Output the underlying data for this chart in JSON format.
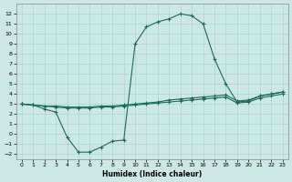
{
  "xlabel": "Humidex (Indice chaleur)",
  "bg_color": "#cce8e4",
  "grid_color": "#aad4d0",
  "line_color": "#1a6b5e",
  "marker": "+",
  "xlim": [
    -0.5,
    23.5
  ],
  "ylim": [
    -2.5,
    13.0
  ],
  "xticks": [
    0,
    1,
    2,
    3,
    4,
    5,
    6,
    7,
    8,
    9,
    10,
    11,
    12,
    13,
    14,
    15,
    16,
    17,
    18,
    19,
    20,
    21,
    22,
    23
  ],
  "yticks": [
    -2,
    -1,
    0,
    1,
    2,
    3,
    4,
    5,
    6,
    7,
    8,
    9,
    10,
    11,
    12
  ],
  "line1_x": [
    0,
    1,
    2,
    3,
    4,
    5,
    6,
    7,
    8,
    9,
    10,
    11,
    12,
    13,
    14,
    15,
    16,
    17,
    18,
    19,
    20,
    21,
    22,
    23
  ],
  "line1_y": [
    3.0,
    2.9,
    2.8,
    2.8,
    2.7,
    2.7,
    2.7,
    2.8,
    2.8,
    2.9,
    3.0,
    3.1,
    3.2,
    3.4,
    3.5,
    3.6,
    3.7,
    3.8,
    3.9,
    3.3,
    3.4,
    3.8,
    4.0,
    4.2
  ],
  "line2_x": [
    0,
    1,
    2,
    3,
    4,
    5,
    6,
    7,
    8,
    9,
    10,
    11,
    12,
    13,
    14,
    15,
    16,
    17,
    18,
    19,
    20,
    21,
    22,
    23
  ],
  "line2_y": [
    3.0,
    2.9,
    2.8,
    2.7,
    2.6,
    2.6,
    2.6,
    2.7,
    2.7,
    2.8,
    2.9,
    3.0,
    3.1,
    3.2,
    3.3,
    3.4,
    3.5,
    3.6,
    3.7,
    3.1,
    3.2,
    3.6,
    3.8,
    4.0
  ],
  "line3_x": [
    0,
    1,
    2,
    3,
    4,
    5,
    6,
    7,
    8,
    9,
    10,
    11,
    12,
    13,
    14,
    15,
    16,
    17,
    18,
    19,
    20,
    21,
    22,
    23
  ],
  "line3_y": [
    3.0,
    2.9,
    2.5,
    2.2,
    -0.3,
    -1.8,
    -1.8,
    -1.3,
    -0.7,
    -0.6,
    9.0,
    10.7,
    11.2,
    11.5,
    12.0,
    11.8,
    11.0,
    7.5,
    5.0,
    3.2,
    3.3,
    3.8,
    4.0,
    4.2
  ]
}
